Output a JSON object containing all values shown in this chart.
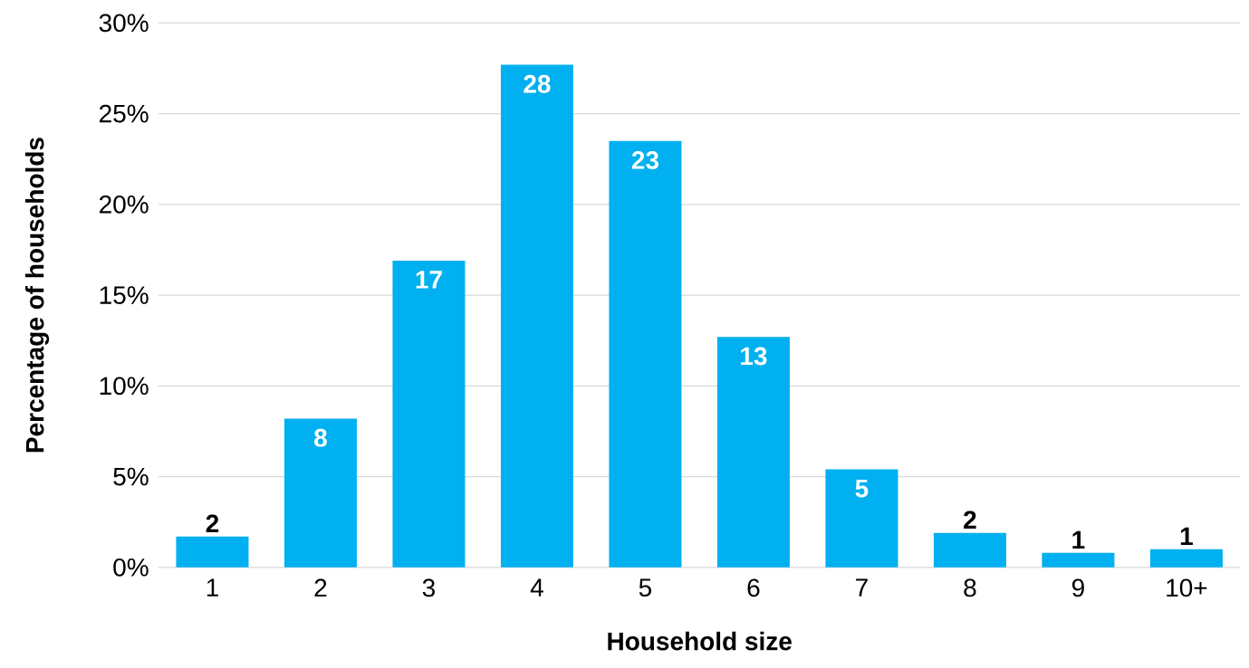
{
  "chart_data": {
    "type": "bar",
    "xlabel": "Household size",
    "ylabel": "Percentage of households",
    "categories": [
      "1",
      "2",
      "3",
      "4",
      "5",
      "6",
      "7",
      "8",
      "9",
      "10+"
    ],
    "values": [
      1.7,
      8.2,
      16.9,
      27.7,
      23.5,
      12.7,
      5.4,
      1.9,
      0.8,
      1.0
    ],
    "value_labels": [
      "2",
      "8",
      "17",
      "28",
      "23",
      "13",
      "5",
      "2",
      "1",
      "1"
    ],
    "color": "#00b0f0",
    "ylim": [
      0,
      30
    ],
    "yticks": [
      {
        "value": 0,
        "label": "0%"
      },
      {
        "value": 5,
        "label": "5%"
      },
      {
        "value": 10,
        "label": "10%"
      },
      {
        "value": 15,
        "label": "15%"
      },
      {
        "value": 20,
        "label": "20%"
      },
      {
        "value": 25,
        "label": "25%"
      },
      {
        "value": 30,
        "label": "30%"
      }
    ],
    "grid": "y"
  }
}
